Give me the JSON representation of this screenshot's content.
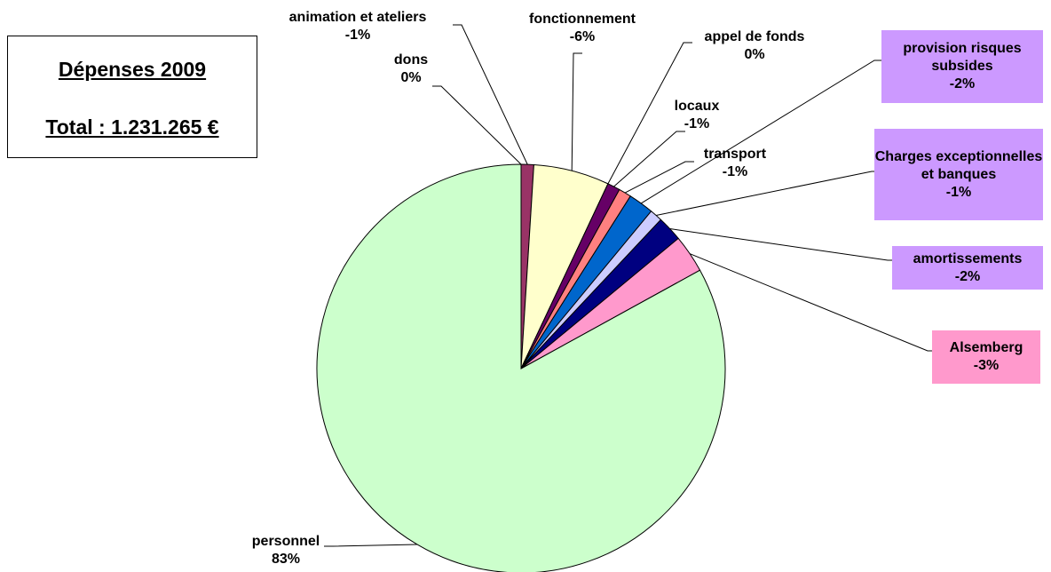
{
  "chart_data": {
    "type": "pie",
    "title": "Dépenses 2009",
    "subtitle": "Total : 1.231.265 €",
    "categories": [
      "dons",
      "animation et ateliers",
      "fonctionnement",
      "appel de fonds",
      "locaux",
      "transport",
      "provision risques subsides",
      "Charges exceptionnelles et banques",
      "amortissements",
      "Alsemberg",
      "personnel"
    ],
    "values": [
      0,
      -1,
      -6,
      0,
      -1,
      -1,
      -2,
      -1,
      -2,
      -3,
      83
    ],
    "value_labels": [
      "0%",
      "-1%",
      "-6%",
      "0%",
      "-1%",
      "-1%",
      "-2%",
      "-1%",
      "-2%",
      "-3%",
      "83%"
    ],
    "colors": [
      "#9999ff",
      "#993366",
      "#ffffcc",
      "#ccffff",
      "#660066",
      "#ff8080",
      "#0066cc",
      "#ccccff",
      "#000080",
      "#ff99cc",
      "#ccffcc"
    ],
    "label_colors": [
      null,
      null,
      null,
      null,
      null,
      null,
      "#cc99ff",
      "#cc99ff",
      "#cc99ff",
      "#ff99cc",
      null
    ]
  }
}
